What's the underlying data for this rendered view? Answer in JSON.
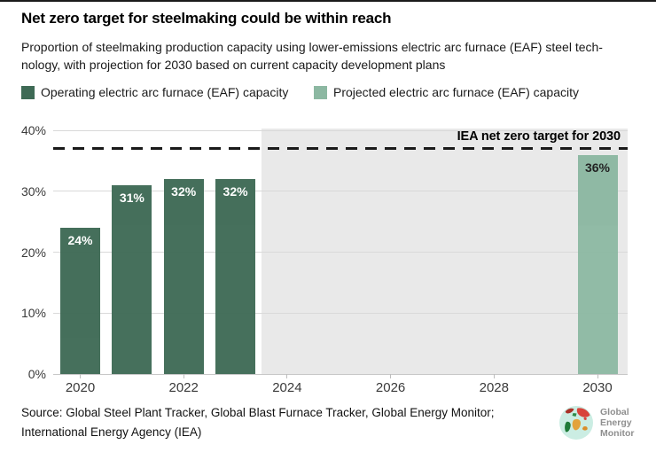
{
  "header": {
    "title": "Net zero target for steelmaking could be within reach",
    "subtitle_line1": "Proportion of steelmaking production capacity using lower-emissions electric arc furnace (EAF) steel tech-",
    "subtitle_line2": "nology, with projection for 2030 based on current capacity development plans"
  },
  "chart_data": {
    "type": "bar",
    "title": "Net zero target for steelmaking could be within reach",
    "xlabel": "",
    "ylabel": "",
    "ylim": [
      0,
      41
    ],
    "xlim": [
      2019.45,
      2030.58
    ],
    "grid": true,
    "y_ticks": [
      0,
      10,
      20,
      30,
      40
    ],
    "y_tick_suffix": "%",
    "x_ticks": [
      2020,
      2022,
      2024,
      2026,
      2028,
      2030
    ],
    "series": [
      {
        "name": "Operating electric arc furnace (EAF) capacity",
        "color": "#3E6A55",
        "label_color": "#ffffff",
        "points": [
          {
            "x": 2020,
            "y": 24,
            "label": "24%"
          },
          {
            "x": 2021,
            "y": 31,
            "label": "31%"
          },
          {
            "x": 2022,
            "y": 32,
            "label": "32%"
          },
          {
            "x": 2023,
            "y": 32,
            "label": "32%"
          }
        ]
      },
      {
        "name": "Projected electric arc furnace (EAF) capacity",
        "color": "#8CB8A2",
        "label_color": "#1a1a1a",
        "points": [
          {
            "x": 2030,
            "y": 36,
            "label": "36%"
          }
        ]
      }
    ],
    "reference_line": {
      "value": 37,
      "label": "IEA net zero target for 2030",
      "style": "dashed",
      "color": "#1a1a1a"
    },
    "projection_region": {
      "x_start": 2023.5,
      "x_end": 2030.58,
      "color": "#E9E9E9"
    }
  },
  "footer": {
    "source_line1": "Source: Global Steel Plant Tracker, Global Blast Furnace Tracker, Global Energy Monitor;",
    "source_line2": "International Energy Agency (IEA)",
    "logo": {
      "line1": "Global",
      "line2": "Energy",
      "line3": "Monitor"
    }
  }
}
